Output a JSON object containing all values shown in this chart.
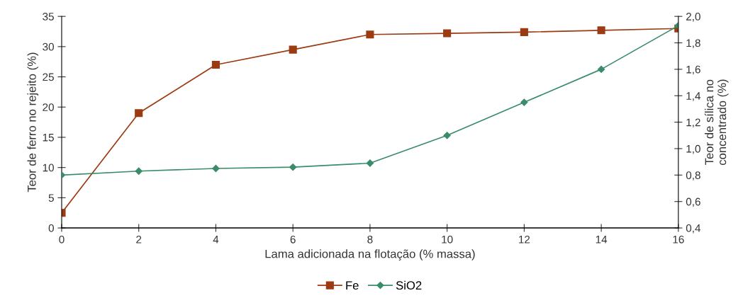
{
  "chart_data": {
    "type": "line",
    "xlabel": "Lama adicionada na flotação (% massa)",
    "ylabel": "Teor de ferro no rejeito (%)",
    "y2label": "Teor de sílica no\nconcentrado (%)",
    "x": [
      0,
      2,
      4,
      6,
      8,
      10,
      12,
      14,
      16
    ],
    "series": [
      {
        "name": "Fe",
        "color": "#9c3a12",
        "marker": "square",
        "values": [
          2.5,
          19,
          27,
          29.5,
          32,
          32.2,
          32.4,
          32.7,
          33
        ]
      },
      {
        "name": "SiO2",
        "color": "#3a8c6a",
        "marker": "diamond",
        "axis": "y2",
        "values": [
          0.8,
          0.83,
          0.85,
          0.86,
          0.89,
          1.1,
          1.35,
          1.6,
          1.93
        ]
      }
    ],
    "xlim": [
      0,
      16
    ],
    "xticks": [
      0,
      2,
      4,
      6,
      8,
      10,
      12,
      14,
      16
    ],
    "ylim": [
      0,
      35
    ],
    "yticks": [
      0,
      5,
      10,
      15,
      20,
      25,
      30,
      35
    ],
    "y2lim": [
      0.4,
      2.0
    ],
    "y2ticks": [
      {
        "value": 0.4,
        "label": "0,4"
      },
      {
        "value": 0.6,
        "label": "0,6"
      },
      {
        "value": 0.8,
        "label": "0,8"
      },
      {
        "value": 1.0,
        "label": "1,0"
      },
      {
        "value": 1.2,
        "label": "1,2"
      },
      {
        "value": 1.4,
        "label": "1,4"
      },
      {
        "value": 1.6,
        "label": "1,6"
      },
      {
        "value": 1.8,
        "label": "1,8"
      },
      {
        "value": 2.0,
        "label": "2,0"
      }
    ],
    "legend": "bottom",
    "grid": false,
    "line_style": "solid"
  }
}
